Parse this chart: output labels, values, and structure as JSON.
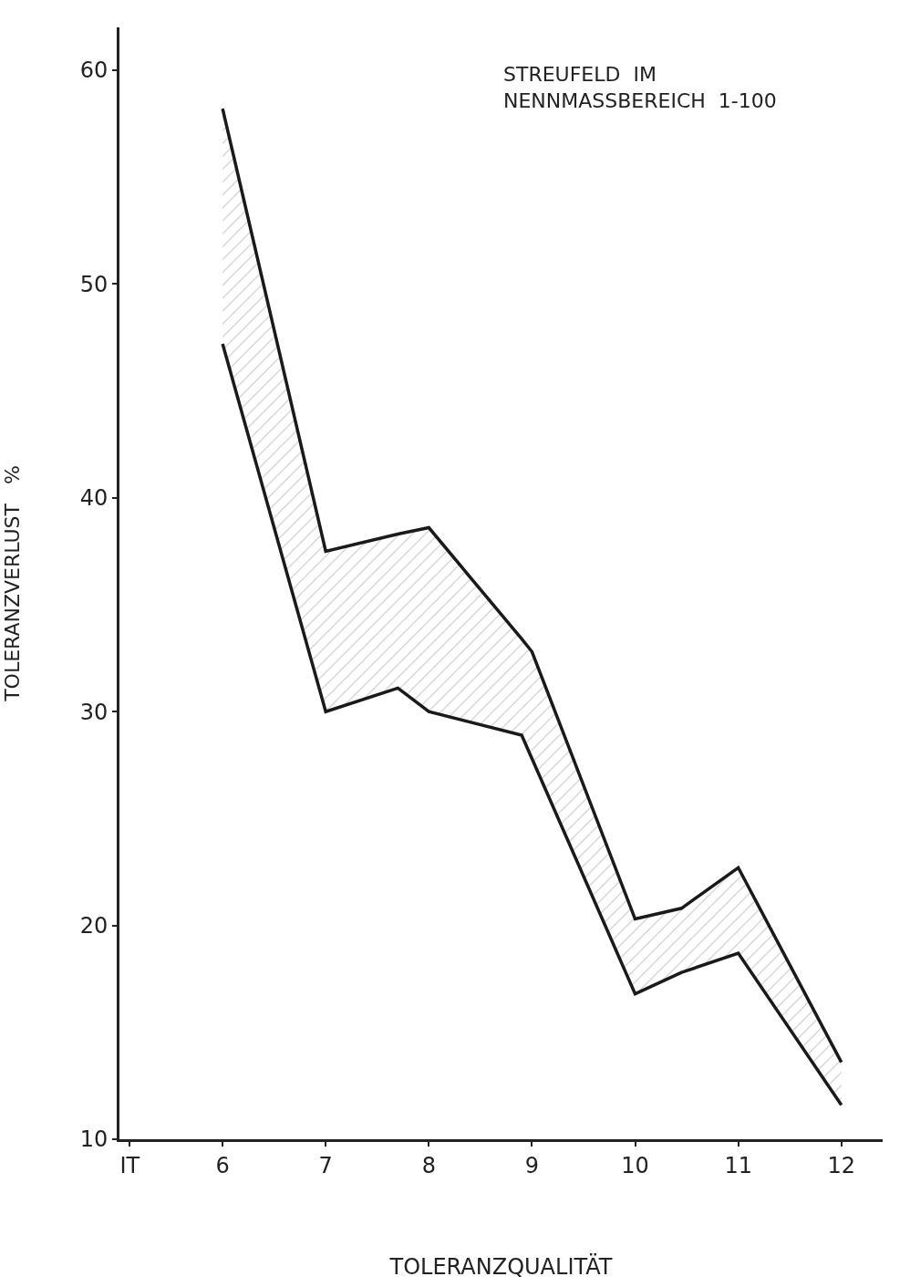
{
  "chart_data": {
    "type": "line",
    "annotations": [
      "STREUFELD  IM\nNENNMASSBEREICH  1-100"
    ],
    "xlabel": "TOLERANZQUALITÄT",
    "ylabel": "TOLERANZVERLUST   %",
    "series": [
      {
        "color": "#1a1a1a",
        "x": [
          6,
          7,
          7.7,
          8,
          8.9,
          9,
          10,
          10.45,
          11,
          12
        ],
        "values": [
          58.2,
          37.5,
          38.3,
          38.6,
          33.4,
          32.8,
          20.3,
          20.8,
          22.7,
          13.6
        ],
        "lower": [
          47.2,
          30,
          31.1,
          30,
          28.9,
          27.8,
          16.8,
          17.8,
          18.7,
          11.6
        ],
        "upper": [
          58.2,
          37.5,
          38.3,
          38.6,
          33.4,
          32.8,
          20.3,
          20.8,
          22.7,
          13.6
        ]
      },
      {
        "color": "#1a1a1a",
        "x": [
          6,
          7,
          7.7,
          8,
          8.9,
          9,
          10,
          10.45,
          11,
          12
        ],
        "values": [
          47.2,
          30,
          31.1,
          30,
          28.9,
          27.8,
          16.8,
          17.8,
          18.7,
          11.6
        ]
      }
    ],
    "xlim": [
      5,
      12.4
    ],
    "ylim": [
      10,
      62
    ],
    "xticks": [
      {
        "value": 5.1,
        "label": "IT"
      },
      6,
      7,
      8,
      9,
      10,
      11,
      12
    ],
    "yticks": [
      10,
      20,
      30,
      40,
      50,
      60
    ],
    "marker": "none",
    "line_style": "solid"
  }
}
